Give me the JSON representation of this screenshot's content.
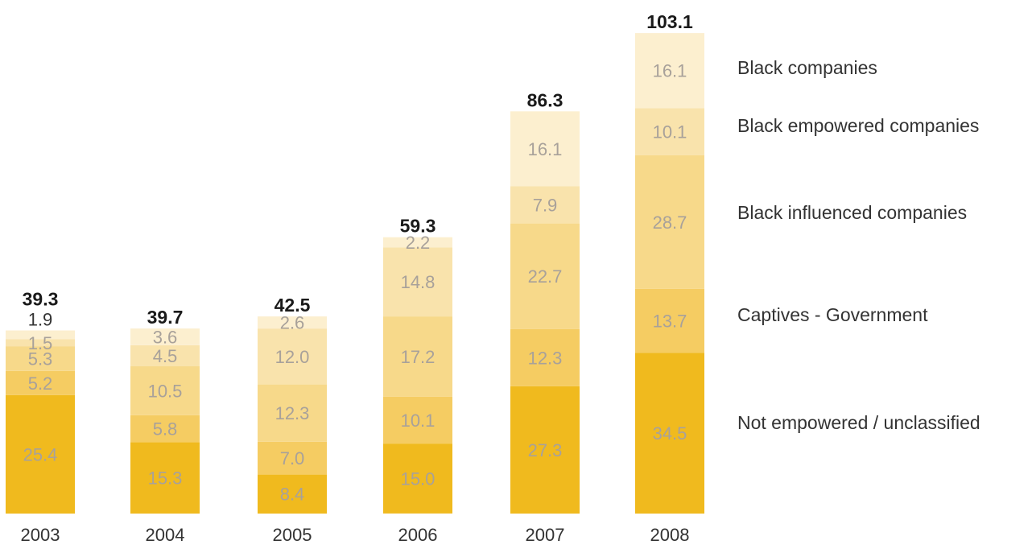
{
  "chart_data": {
    "type": "bar",
    "stacked": true,
    "categories": [
      "2003",
      "2004",
      "2005",
      "2006",
      "2007",
      "2008"
    ],
    "totals": [
      "39.3",
      "39.7",
      "42.5",
      "59.3",
      "86.3",
      "103.1"
    ],
    "series": [
      {
        "name": "Not empowered / unclassified",
        "color": "#F0BA1E",
        "values": [
          25.4,
          15.3,
          8.4,
          15.0,
          27.3,
          34.5
        ],
        "labels": [
          "25.4",
          "15.3",
          "8.4",
          "15.0",
          "27.3",
          "34.5"
        ]
      },
      {
        "name": "Captives - Government",
        "color": "#F5CC62",
        "values": [
          5.2,
          5.8,
          7.0,
          10.1,
          12.3,
          13.7
        ],
        "labels": [
          "5.2",
          "5.8",
          "7.0",
          "10.1",
          "12.3",
          "13.7"
        ]
      },
      {
        "name": "Black influenced companies",
        "color": "#F7D98A",
        "values": [
          5.3,
          10.5,
          12.3,
          17.2,
          22.7,
          28.7
        ],
        "labels": [
          "5.3",
          "10.5",
          "12.3",
          "17.2",
          "22.7",
          "28.7"
        ]
      },
      {
        "name": "Black empowered companies",
        "color": "#F9E3AC",
        "values": [
          1.5,
          4.5,
          12.0,
          14.8,
          7.9,
          10.1
        ],
        "labels": [
          "1.5",
          "4.5",
          "12.0",
          "14.8",
          "7.9",
          "10.1"
        ]
      },
      {
        "name": "Black companies",
        "color": "#FCEFCF",
        "values": [
          1.9,
          3.6,
          2.6,
          2.2,
          16.1,
          16.1
        ],
        "labels": [
          "1.9",
          "3.6",
          "2.6",
          "2.2",
          "16.1",
          "16.1"
        ]
      }
    ],
    "legend_order": [
      4,
      3,
      2,
      1,
      0
    ],
    "legend_position": "right",
    "ylim": [
      0,
      105
    ],
    "grid": false,
    "title": "",
    "xlabel": "",
    "ylabel": ""
  }
}
